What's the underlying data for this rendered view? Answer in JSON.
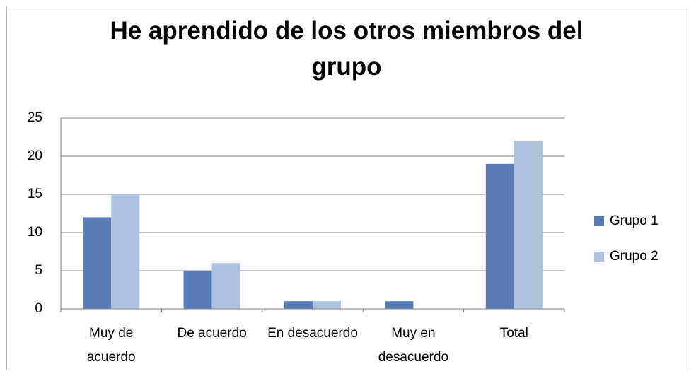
{
  "chart_data": {
    "type": "bar",
    "title": "He aprendido de los otros miembros del grupo",
    "categories": [
      "Muy de acuerdo",
      "De acuerdo",
      "En desacuerdo",
      "Muy en desacuerdo",
      "Total"
    ],
    "series": [
      {
        "name": "Grupo 1",
        "color": "#5a7bb6",
        "values": [
          12,
          5,
          1,
          1,
          19
        ]
      },
      {
        "name": "Grupo 2",
        "color": "#b0c1de",
        "values": [
          15,
          6,
          1,
          0,
          22
        ]
      }
    ],
    "ylim": [
      0,
      25
    ],
    "yticks": [
      0,
      5,
      10,
      15,
      20,
      25
    ],
    "grid": true,
    "legend": "right"
  }
}
